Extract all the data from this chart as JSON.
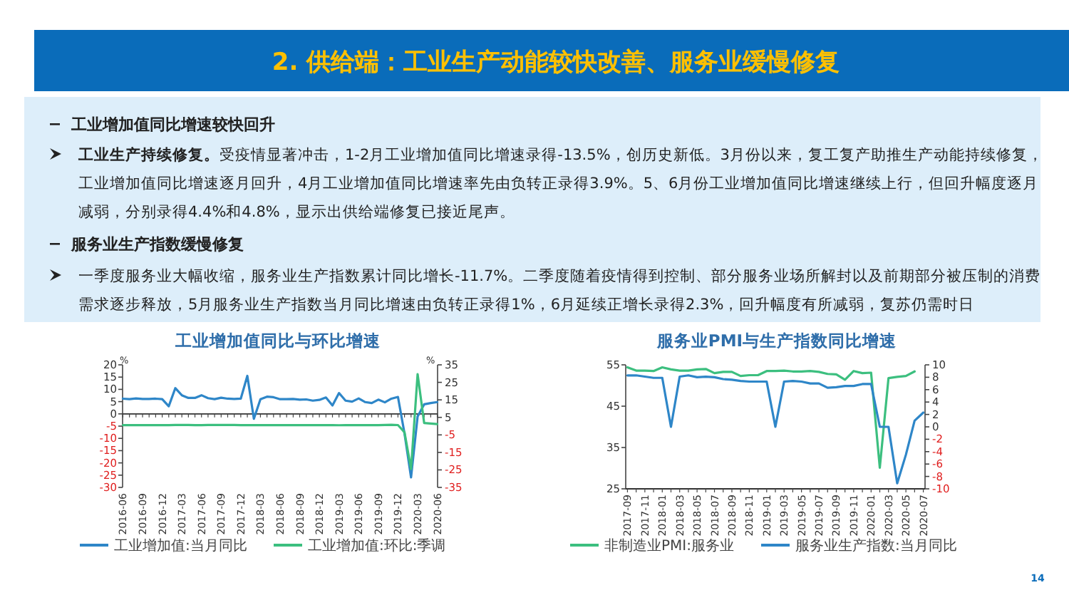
{
  "chart_data": [
    {
      "type": "other",
      "title": "2. 供给端：工业生产动能较快改善、服务业缓慢修复",
      "annotations": [
        "工业增加值同比增速较快回升",
        "工业生产持续修复。",
        "受疫情显著冲击，1-2月工业增加值同比增速录得-13.5%，创历史新低。3月份以来，复工复产助推生产动能持续修复，",
        "工业增加值同比增速逐月回升，4月工业增加值同比增速率先由负转正录得3.9%。5、6月份工业增加值同比增速继续上行，但回升幅度逐月",
        "减弱，分别录得4.4%和4.8%，显示出供给端修复已接近尾声。",
        "服务业生产指数缓慢修复",
        "一季度服务业大幅收缩，服务业生产指数累计同比增长-11.7%。二季度随着疫情得到控制、部分服务业场所解封以及前期部分被压制的消费",
        "需求逐步释放，5月服务业生产指数当月同比增速由负转正录得1%，6月延续正增长录得2.3%，回升幅度有所减弱，复苏仍需时日",
        "14"
      ]
    },
    {
      "type": "line",
      "title": "工业增加值同比与环比增速",
      "ylabel": "%",
      "y2label": "%",
      "categories": [
        "2016-06",
        null,
        null,
        "2016-09",
        null,
        null,
        "2016-12",
        null,
        null,
        "2017-03",
        null,
        null,
        "2017-06",
        null,
        null,
        "2017-09",
        null,
        null,
        "2017-12",
        null,
        null,
        "2018-03",
        null,
        null,
        "2018-06",
        null,
        null,
        "2018-09",
        null,
        null,
        "2018-12",
        null,
        null,
        "2019-03",
        null,
        null,
        "2019-06",
        null,
        null,
        "2019-09",
        null,
        null,
        "2019-12",
        null,
        null,
        "2020-03",
        null,
        null,
        "2020-06"
      ],
      "ylim": [
        -30,
        20
      ],
      "yticks": [
        20,
        15,
        10,
        5,
        0,
        -5,
        -10,
        -15,
        -20,
        -25,
        -30
      ],
      "y2lim": [
        -35,
        35
      ],
      "y2ticks": [
        35,
        25,
        15,
        5,
        -5,
        -15,
        -25,
        -35
      ],
      "legend": "bottom",
      "series": [
        {
          "name": "工业增加值:当月同比",
          "color": "#2e86c8",
          "values": [
            6.2,
            6.0,
            6.3,
            6.1,
            6.1,
            6.2,
            6.0,
            3.1,
            10.5,
            7.6,
            6.5,
            6.5,
            7.6,
            6.4,
            6.0,
            6.6,
            6.2,
            6.1,
            6.2,
            15.5,
            -2.0,
            6.0,
            7.0,
            6.8,
            6.0,
            6.0,
            6.1,
            5.8,
            5.9,
            5.4,
            5.7,
            6.7,
            3.4,
            8.5,
            5.4,
            5.0,
            6.3,
            4.8,
            4.4,
            5.8,
            4.7,
            6.2,
            6.9,
            -8,
            -25.9,
            -1.1,
            3.9,
            4.4,
            4.8
          ]
        },
        {
          "name": "工业增加值:环比:季调",
          "color": "#3cbf7f",
          "axis": "y2",
          "values": [
            0.6,
            0.6,
            0.6,
            0.6,
            0.6,
            0.6,
            0.6,
            0.6,
            0.7,
            0.7,
            0.7,
            0.6,
            0.6,
            0.7,
            0.7,
            0.7,
            0.7,
            0.7,
            0.6,
            0.6,
            0.6,
            0.6,
            0.6,
            0.6,
            0.6,
            0.6,
            0.6,
            0.6,
            0.6,
            0.6,
            0.6,
            0.6,
            0.6,
            0.5,
            0.6,
            0.6,
            0.6,
            0.6,
            0.6,
            0.6,
            0.7,
            0.8,
            0.6,
            -3.5,
            -24.5,
            29.7,
            1.8,
            1.5,
            1.2
          ]
        }
      ]
    },
    {
      "type": "line",
      "title": "服务业PMI与生产指数同比增速",
      "categories": [
        "2017-09",
        null,
        "2017-11",
        null,
        "2018-01",
        null,
        "2018-03",
        null,
        "2018-05",
        null,
        "2018-07",
        null,
        "2018-09",
        null,
        "2018-11",
        null,
        "2019-01",
        null,
        "2019-03",
        null,
        "2019-05",
        null,
        "2019-07",
        null,
        "2019-09",
        null,
        "2019-11",
        null,
        "2020-01",
        null,
        "2020-03",
        null,
        "2020-05",
        null,
        "2020-07"
      ],
      "ylim": [
        25,
        55
      ],
      "yticks": [
        55,
        45,
        35,
        25
      ],
      "y2lim": [
        -10,
        10
      ],
      "y2ticks": [
        10,
        8,
        6,
        4,
        2,
        0,
        -2,
        -4,
        -6,
        -8,
        -10
      ],
      "legend": "bottom",
      "series": [
        {
          "name": "非制造业PMI:服务业",
          "color": "#3cbf7f",
          "values": [
            54.4,
            53.6,
            53.6,
            53.5,
            54.4,
            53.9,
            53.6,
            53.6,
            53.9,
            54.0,
            53.0,
            53.3,
            53.3,
            52.3,
            52.5,
            52.5,
            53.5,
            53.5,
            53.6,
            53.4,
            53.4,
            53.5,
            53.3,
            52.8,
            52.7,
            51.4,
            53.5,
            53.0,
            53.1,
            30.1,
            51.8,
            52.1,
            52.3,
            53.4,
            null
          ]
        },
        {
          "name": "服务业生产指数:当月同比",
          "color": "#2e86c8",
          "axis": "y2",
          "values": [
            8.3,
            8.3,
            8.1,
            7.9,
            7.9,
            0,
            8.1,
            8.3,
            8.0,
            8.1,
            8.0,
            7.7,
            7.6,
            7.4,
            7.3,
            7.3,
            7.3,
            0,
            7.3,
            7.4,
            7.3,
            7.0,
            7.0,
            6.3,
            6.4,
            6.6,
            6.6,
            6.9,
            6.9,
            0,
            0,
            -9.1,
            -4.5,
            1.0,
            2.3
          ]
        }
      ]
    }
  ]
}
